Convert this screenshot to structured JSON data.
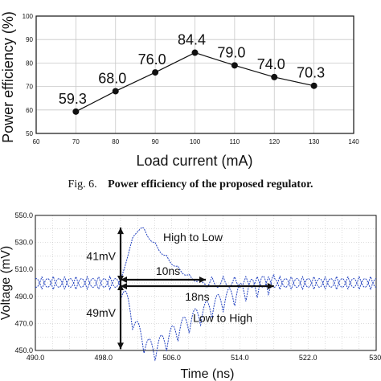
{
  "caption": {
    "label": "Fig. 6.",
    "title": "Power efficiency of the proposed regulator."
  },
  "chart_data": [
    {
      "type": "line",
      "x": [
        70,
        80,
        90,
        100,
        110,
        120,
        130
      ],
      "y": [
        59.3,
        68.0,
        76.0,
        84.4,
        79.0,
        74.0,
        70.3
      ],
      "data_labels": [
        "59.3",
        "68.0",
        "76.0",
        "84.4",
        "79.0",
        "74.0",
        "70.3"
      ],
      "xlabel": "Load current (mA)",
      "ylabel": "Power efficiency (%)",
      "xlim": [
        60,
        140
      ],
      "ylim": [
        50,
        100
      ],
      "xticks": [
        60,
        70,
        80,
        90,
        100,
        110,
        120,
        130,
        140
      ],
      "xtick_labels": [
        "60",
        "70",
        "80",
        "90",
        "100",
        "110",
        "120",
        "130",
        "140"
      ],
      "yticks": [
        50,
        60,
        70,
        80,
        90,
        100
      ],
      "ytick_labels": [
        "50",
        "60",
        "70",
        "80",
        "90",
        "100"
      ],
      "grid": true,
      "line_color": "#111111",
      "marker": "filled-circle"
    },
    {
      "type": "line",
      "xlabel": "Time (ns)",
      "ylabel": "Voltage (mV)",
      "xlim": [
        490,
        530
      ],
      "ylim": [
        450,
        550
      ],
      "xticks": [
        490,
        498,
        506,
        514,
        522,
        530
      ],
      "xtick_labels": [
        "490.0",
        "498.0",
        "506.0",
        "514.0",
        "522.0",
        "530."
      ],
      "yticks": [
        450,
        470,
        490,
        510,
        530,
        550
      ],
      "ytick_labels": [
        "450.0",
        "470.0",
        "490.0",
        "510.0",
        "530.0",
        "550.0"
      ],
      "grid": true,
      "baseline_mV": 500,
      "ripple_amplitude_mV": 4,
      "ripple_period_ns": 1.33,
      "event_time_ns": 500,
      "series": [
        {
          "name": "High to Low",
          "peak_mV": 541,
          "peak_time_ns": 502.5,
          "settle_time_ns": 510,
          "color": "#1f3fbf"
        },
        {
          "name": "Low to High",
          "trough_mV": 451,
          "trough_time_ns": 504,
          "settle_time_ns": 518,
          "color": "#1f3fbf"
        }
      ],
      "annotations": [
        {
          "text": "High to Low"
        },
        {
          "text": "Low to High"
        },
        {
          "text": "41mV"
        },
        {
          "text": "49mV"
        },
        {
          "text": "10ns"
        },
        {
          "text": "18ns"
        }
      ],
      "colors": {
        "annotation_arrow": "#111111",
        "grid": "#bbbbbb"
      }
    }
  ]
}
